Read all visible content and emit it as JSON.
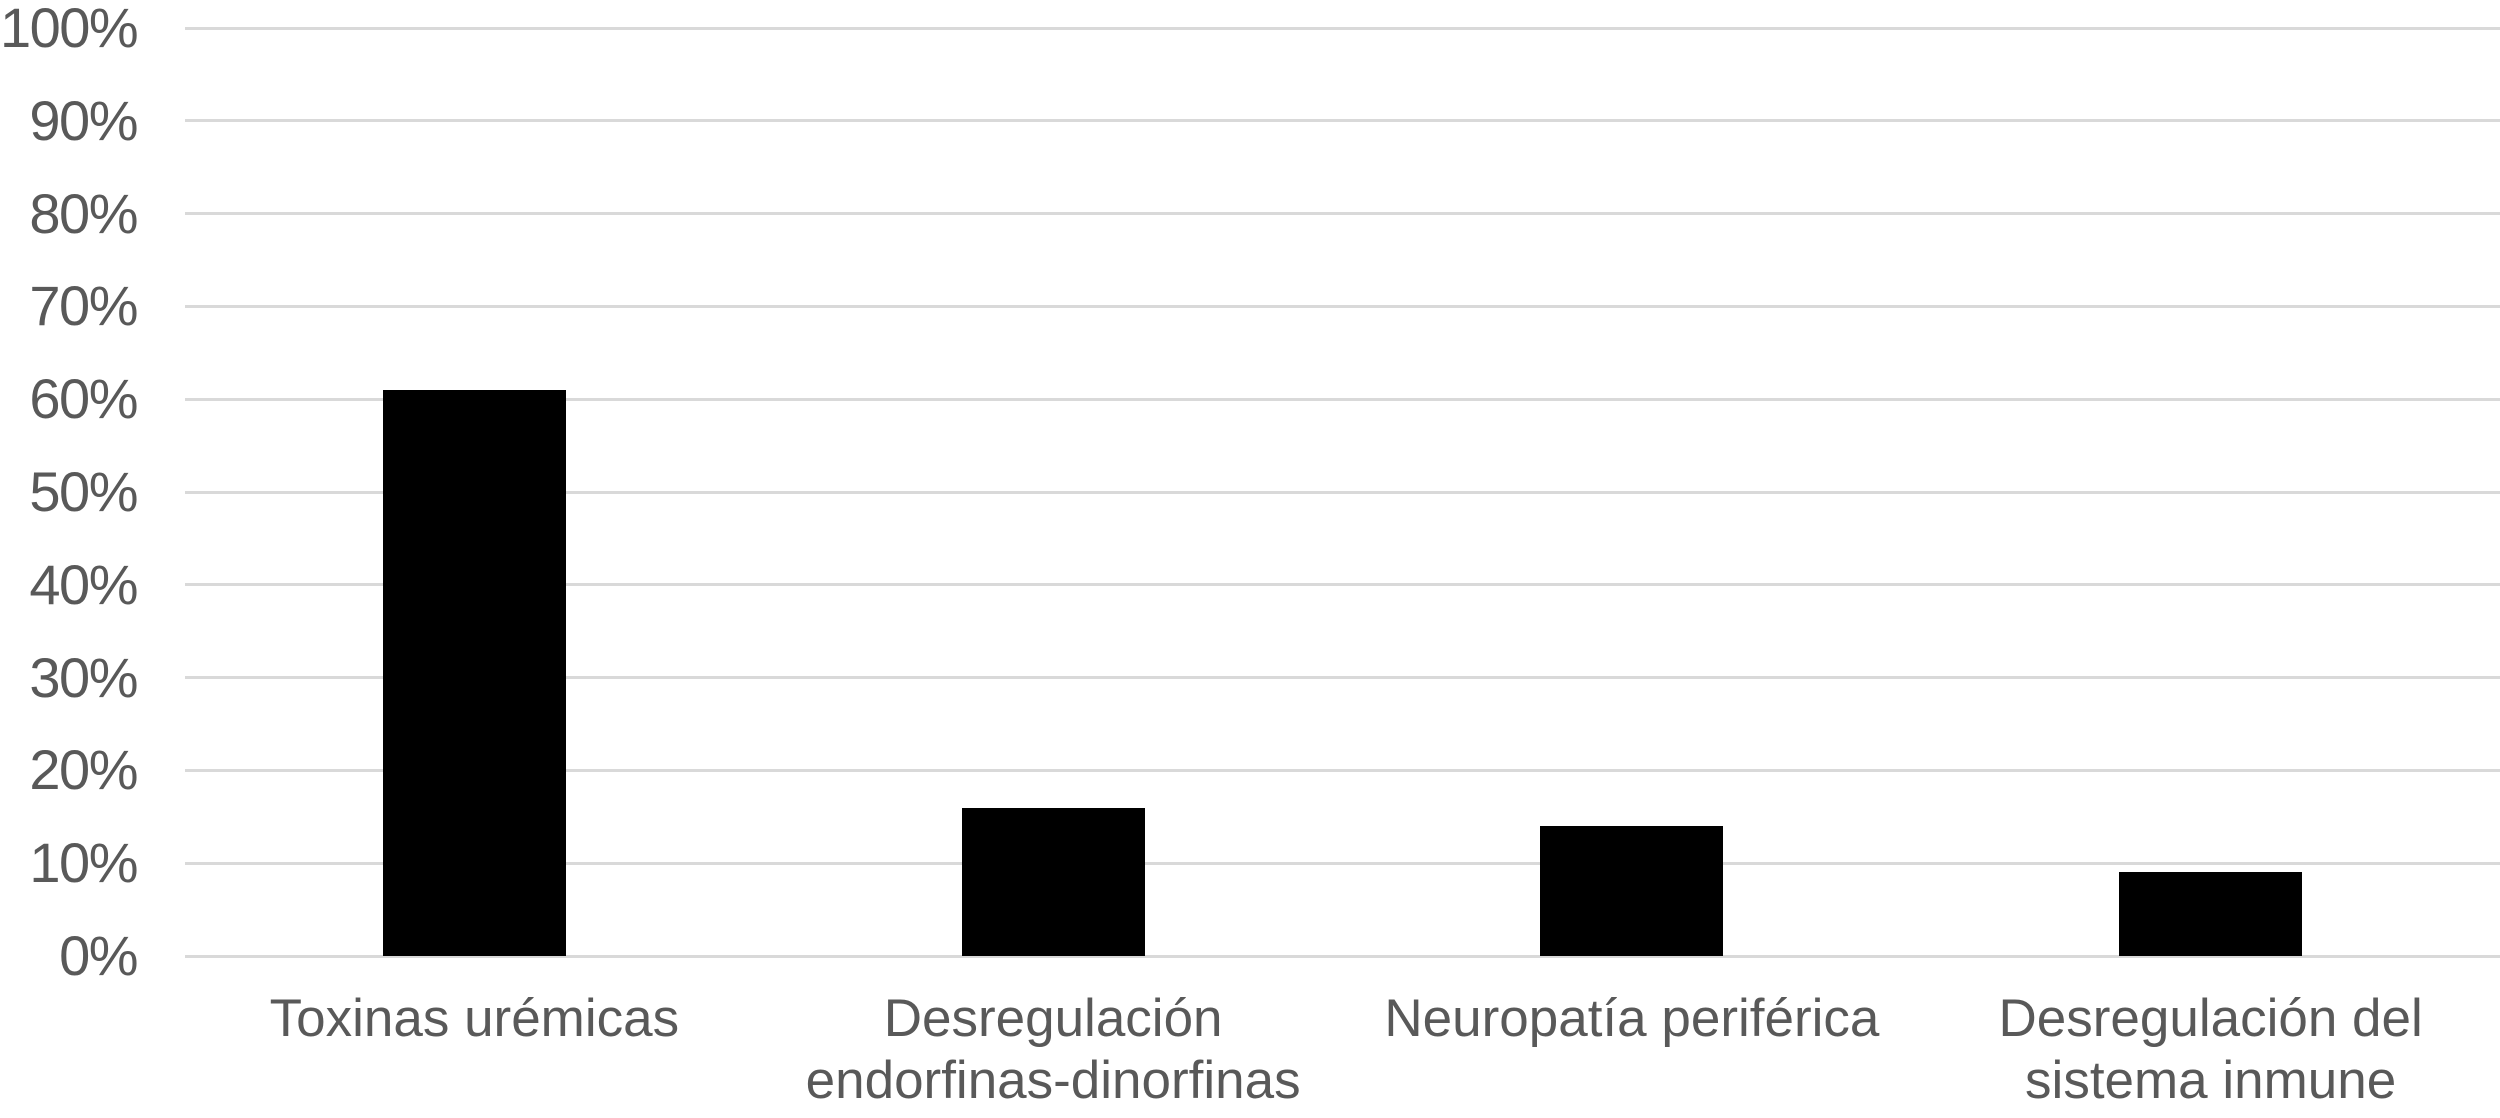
{
  "chart_data": {
    "type": "bar",
    "title": "",
    "xlabel": "",
    "ylabel": "",
    "categories": [
      "Toxinas urémicas",
      "Desregulación endorfinas-dinorfinas",
      "Neuropatía periférica",
      "Desregulación del sistema inmune"
    ],
    "values": [
      61,
      16,
      14,
      9
    ],
    "value_unit": "%",
    "ylim": [
      0,
      100
    ],
    "ytick_values": [
      0,
      10,
      20,
      30,
      40,
      50,
      60,
      70,
      80,
      90,
      100
    ],
    "ytick_labels": [
      "0%",
      "10%",
      "20%",
      "30%",
      "40%",
      "50%",
      "60%",
      "70%",
      "80%",
      "90%",
      "100%"
    ],
    "grid": "horizontal",
    "legend": "none",
    "colors": {
      "bar": "#000000",
      "grid": "#d9d9d9",
      "text": "#595959",
      "background": "#ffffff"
    }
  }
}
